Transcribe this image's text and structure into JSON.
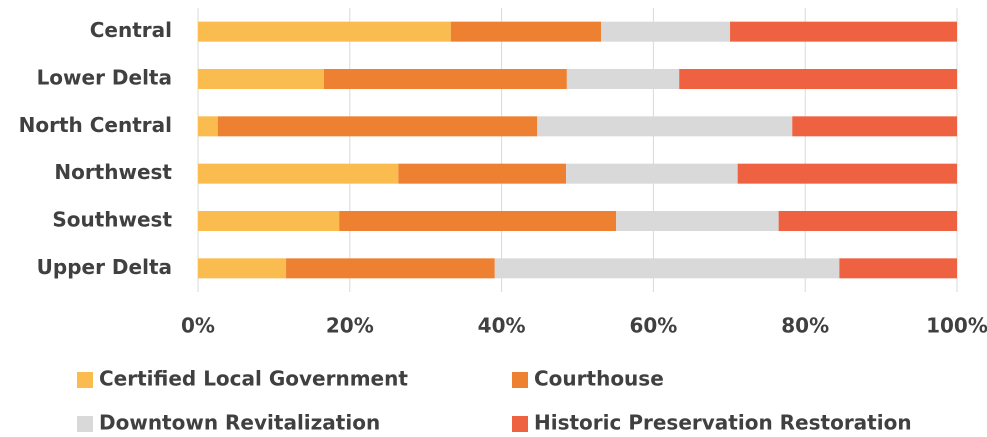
{
  "chart_data": {
    "type": "stacked-bar-horizontal",
    "categories": [
      "Central",
      "Lower Delta",
      "North Central",
      "Northwest",
      "Southwest",
      "Upper Delta"
    ],
    "series": [
      {
        "name": "Certified Local Government",
        "color": "#fbbc4f",
        "values": [
          33.3,
          16.6,
          2.6,
          26.4,
          18.6,
          11.6
        ]
      },
      {
        "name": "Courthouse",
        "color": "#ee8131",
        "values": [
          19.8,
          32.0,
          42.1,
          22.1,
          36.5,
          27.5
        ]
      },
      {
        "name": "Downtown Revitalization",
        "color": "#d9d9d9",
        "values": [
          17.0,
          14.8,
          33.6,
          22.6,
          21.4,
          45.4
        ]
      },
      {
        "name": "Historic Preservation Restoration",
        "color": "#ee6141",
        "values": [
          29.9,
          36.6,
          21.7,
          28.9,
          23.5,
          15.5
        ]
      }
    ],
    "xlim": [
      0,
      100
    ],
    "xticks": [
      {
        "value": 0,
        "label": "0%"
      },
      {
        "value": 20,
        "label": "20%"
      },
      {
        "value": 40,
        "label": "40%"
      },
      {
        "value": 60,
        "label": "60%"
      },
      {
        "value": 80,
        "label": "80%"
      },
      {
        "value": 100,
        "label": "100%"
      }
    ],
    "grid": true,
    "legend": "bottom"
  }
}
